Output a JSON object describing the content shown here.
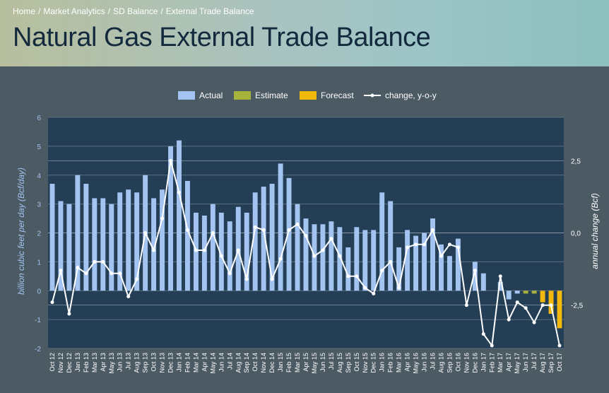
{
  "breadcrumb": {
    "items": [
      "Home",
      "Market Analytics",
      "SD Balance",
      "External Trade Balance"
    ],
    "separator": "/"
  },
  "page": {
    "title": "Natural Gas External Trade Balance"
  },
  "colors": {
    "plot_bg": "#233e55",
    "outer_bg": "#4b5a63",
    "actual": "#a3c3f0",
    "estimate": "#a6b23c",
    "forecast": "#f2b90c",
    "line": "#ffffff"
  },
  "chart_data": {
    "type": "bar",
    "legend": {
      "placement": "top-center",
      "entries": [
        "Actual",
        "Estimate",
        "Forecast",
        "change, y-o-y"
      ]
    },
    "ylabel": "billion cubic feet per day (Bcf/day)",
    "y2label": "annual change (Bcf)",
    "ylim": [
      -2,
      6
    ],
    "y_ticks": [
      "-2",
      "-1",
      "0",
      "1",
      "2",
      "3",
      "4",
      "5",
      "6"
    ],
    "y2lim": [
      -4,
      4
    ],
    "y2_ticks": [
      "-2,5",
      "0,0",
      "2,5"
    ],
    "grid": true,
    "categories": [
      "Oct 12",
      "Nov 12",
      "Dec 12",
      "Jan 13",
      "Feb 13",
      "Mar 13",
      "Apr 13",
      "May 13",
      "Jun 13",
      "Jul 13",
      "Aug 13",
      "Sep 13",
      "Oct 13",
      "Nov 13",
      "Dec 13",
      "Jan 14",
      "Feb 14",
      "Mar 14",
      "Apr 14",
      "May 14",
      "Jun 14",
      "Jul 14",
      "Aug 14",
      "Sep 14",
      "Oct 14",
      "Nov 14",
      "Dec 14",
      "Jan 15",
      "Feb 15",
      "Mar 15",
      "Apr 15",
      "May 15",
      "Jun 15",
      "Jul 15",
      "Aug 15",
      "Sep 15",
      "Oct 15",
      "Nov 15",
      "Dec 15",
      "Jan 16",
      "Feb 16",
      "Mar 16",
      "Apr 16",
      "May 16",
      "Jun 16",
      "Jul 16",
      "Aug 16",
      "Sep 16",
      "Oct 16",
      "Nov 16",
      "Dec 16",
      "Jan 17",
      "Feb 17",
      "Mar 17",
      "Apr 17",
      "May 17",
      "Jun 17",
      "Jul 17",
      "Aug 17",
      "Sep 17",
      "Oct 17"
    ],
    "series": [
      {
        "name": "Actual",
        "values": [
          3.7,
          3.1,
          3.0,
          4.0,
          3.7,
          3.2,
          3.2,
          3.0,
          3.4,
          3.5,
          3.4,
          4.0,
          3.2,
          3.5,
          5.0,
          5.2,
          3.8,
          2.7,
          2.6,
          3.0,
          2.7,
          2.4,
          2.9,
          2.7,
          3.4,
          3.6,
          3.7,
          4.4,
          3.9,
          3.0,
          2.5,
          2.3,
          2.3,
          2.4,
          2.2,
          1.5,
          2.2,
          2.1,
          2.1,
          3.4,
          3.1,
          1.5,
          2.1,
          1.9,
          2.0,
          2.5,
          1.6,
          1.2,
          1.8,
          0.0,
          1.0,
          0.6,
          0.0,
          0.3,
          -0.3,
          -0.1,
          0.0,
          0.0,
          0.0,
          0.0,
          0.0
        ]
      },
      {
        "name": "Estimate",
        "values": [
          0,
          0,
          0,
          0,
          0,
          0,
          0,
          0,
          0,
          0,
          0,
          0,
          0,
          0,
          0,
          0,
          0,
          0,
          0,
          0,
          0,
          0,
          0,
          0,
          0,
          0,
          0,
          0,
          0,
          0,
          0,
          0,
          0,
          0,
          0,
          0,
          0,
          0,
          0,
          0,
          0,
          0,
          0,
          0,
          0,
          0,
          0,
          0,
          0,
          0,
          0,
          0,
          0,
          0,
          0,
          0,
          -0.1,
          -0.1,
          0,
          0,
          0
        ]
      },
      {
        "name": "Forecast",
        "values": [
          0,
          0,
          0,
          0,
          0,
          0,
          0,
          0,
          0,
          0,
          0,
          0,
          0,
          0,
          0,
          0,
          0,
          0,
          0,
          0,
          0,
          0,
          0,
          0,
          0,
          0,
          0,
          0,
          0,
          0,
          0,
          0,
          0,
          0,
          0,
          0,
          0,
          0,
          0,
          0,
          0,
          0,
          0,
          0,
          0,
          0,
          0,
          0,
          0,
          0,
          0,
          0,
          0,
          0,
          0,
          0,
          0,
          0,
          -0.4,
          -0.8,
          -1.3
        ]
      },
      {
        "name": "change, y-o-y",
        "axis": "right",
        "values": [
          -2.4,
          -1.3,
          -2.8,
          -1.2,
          -1.4,
          -1.0,
          -1.0,
          -1.4,
          -1.4,
          -2.2,
          -1.6,
          0.0,
          -0.6,
          0.5,
          2.5,
          1.4,
          0.1,
          -0.6,
          -0.6,
          0.0,
          -0.8,
          -1.4,
          -0.6,
          -1.6,
          0.2,
          0.1,
          -1.6,
          -0.9,
          0.1,
          0.3,
          -0.1,
          -0.8,
          -0.6,
          -0.2,
          -0.8,
          -1.5,
          -1.5,
          -1.9,
          -2.1,
          -1.3,
          -1.0,
          -1.9,
          -0.5,
          -0.4,
          -0.4,
          0.1,
          -0.8,
          -0.4,
          -0.5,
          -2.5,
          -1.3,
          -3.5,
          -3.9,
          -1.5,
          -3.0,
          -2.4,
          -2.6,
          -3.1,
          -2.5,
          -2.5,
          -3.9
        ]
      }
    ]
  }
}
